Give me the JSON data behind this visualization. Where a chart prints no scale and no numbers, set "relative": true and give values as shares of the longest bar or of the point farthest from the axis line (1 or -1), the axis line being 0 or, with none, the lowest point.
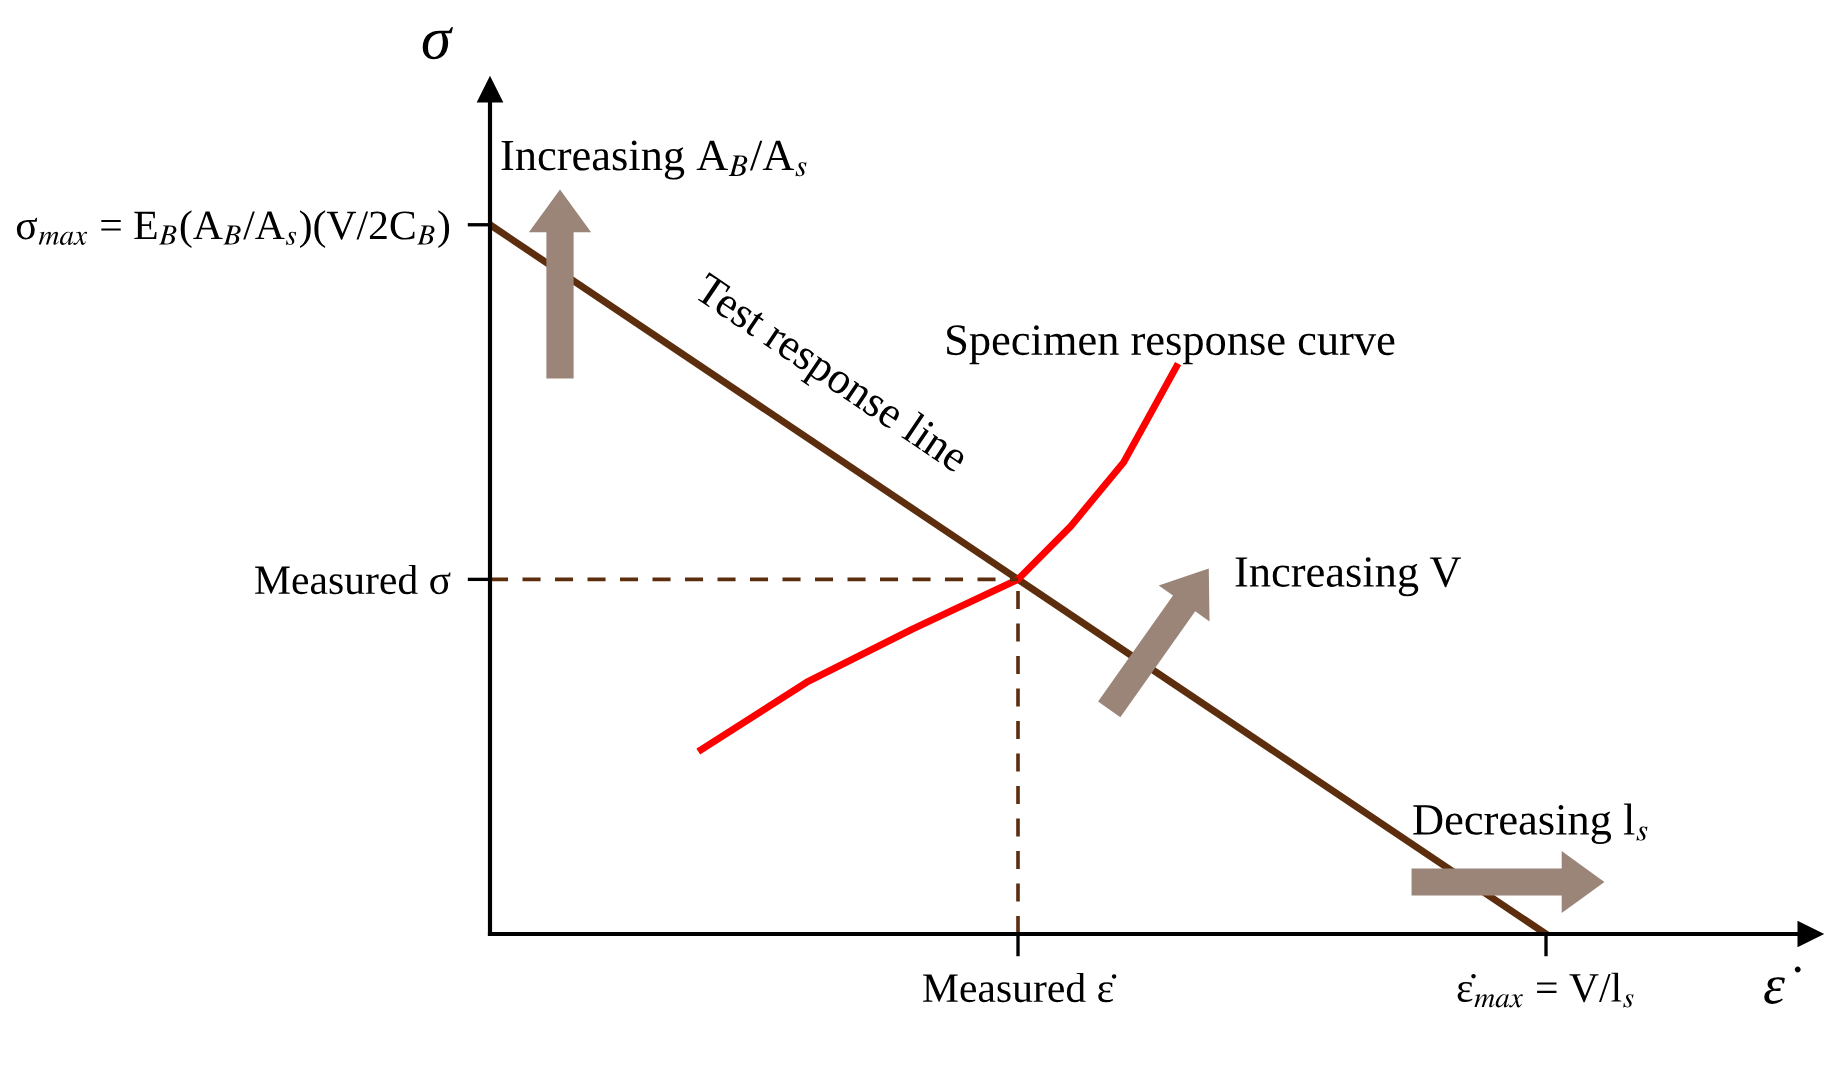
{
  "chart_data": {
    "type": "line",
    "relative": true,
    "xlabel": "ε̇",
    "ylabel": "σ",
    "categories": [
      null,
      null,
      null,
      null,
      null,
      null,
      null,
      null,
      null,
      null,
      "Measured ε̇",
      null,
      null,
      null,
      null,
      null,
      null,
      null,
      null,
      null,
      "ε̇$_{max}$ = V/l$_{s}$",
      null,
      null,
      null,
      null,
      null
    ],
    "series": [
      {
        "color": "#5c2e0e",
        "line_style": "solid",
        "values": [
          1,
          null,
          null,
          null,
          null,
          null,
          null,
          null,
          null,
          null,
          null,
          null,
          null,
          null,
          null,
          null,
          null,
          null,
          null,
          null,
          0,
          null,
          null,
          null,
          null,
          null
        ]
      },
      {
        "color": "#ff0000",
        "line_style": "solid",
        "values": [
          null,
          null,
          null,
          null,
          0.26,
          null,
          0.355,
          null,
          0.43,
          null,
          0.5,
          0.575,
          0.665,
          0.8,
          null,
          null,
          null,
          null,
          null,
          null,
          null,
          null,
          null,
          null,
          null,
          null
        ]
      },
      {
        "color": "#5c2e0e",
        "line_style": "dashed",
        "values": [
          0.5,
          null,
          null,
          null,
          null,
          null,
          null,
          null,
          null,
          null,
          0.5,
          null,
          null,
          null,
          null,
          null,
          null,
          null,
          null,
          null,
          null,
          null,
          null,
          null,
          null,
          null
        ]
      }
    ],
    "ref_lines": [
      {
        "axis": "x",
        "value": "Measured ε̇",
        "color": "#5c2e0e",
        "line_style": "dashed"
      }
    ],
    "marker": "none",
    "grid": false,
    "legend": false,
    "annotations": [
      "Measured σ",
      "σ$_{max}$ = E$_{B}$(A$_{B}$/A$_{s}$)(V/2C$_{B}$)",
      "Test response line",
      "Specimen response curve",
      "Increasing A$_{B}$/A$_{s}$",
      "Increasing V",
      "Decreasing l$_{s}$"
    ]
  }
}
